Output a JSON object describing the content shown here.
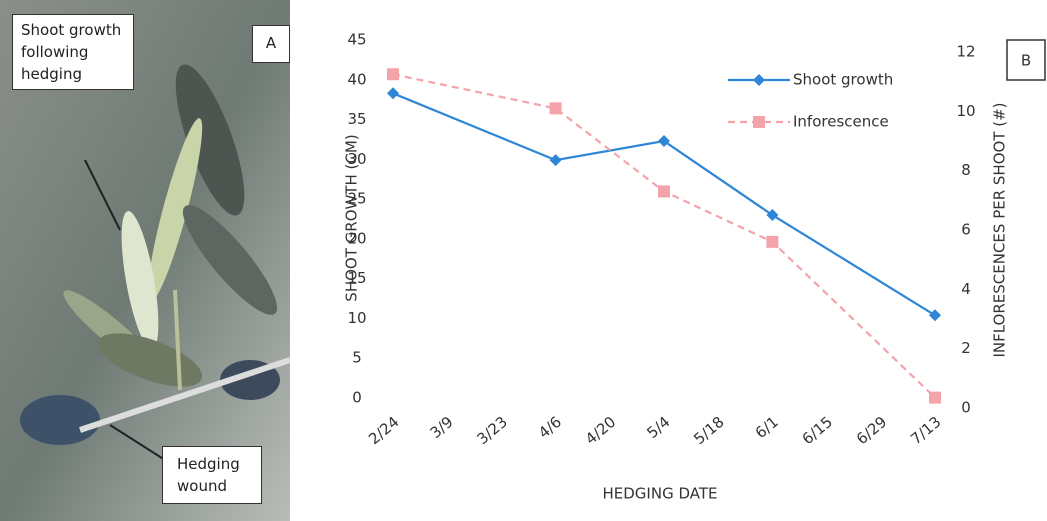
{
  "panel_a": {
    "label": "A",
    "annotations": [
      "Shoot growth following hedging",
      "Hedging wound"
    ]
  },
  "chart_data": {
    "type": "line",
    "panel_label": "B",
    "xlabel": "HEDGING DATE",
    "ylabel": "SHOOT GROWTH (CM)",
    "y2label": "INFLORESCENCES PER SHOOT (#)",
    "categories": [
      "2/24",
      "3/9",
      "3/23",
      "4/6",
      "4/20",
      "5/4",
      "5/18",
      "6/1",
      "6/15",
      "6/29",
      "7/13"
    ],
    "series": [
      {
        "name": "Shoot growth",
        "color": "#2e86d6",
        "marker": "diamond",
        "dashed": false,
        "x": [
          "2/24",
          "4/6",
          "5/4",
          "6/1",
          "7/13"
        ],
        "values": [
          38.3,
          29.9,
          32.3,
          23,
          10.4
        ]
      },
      {
        "name": "Inforescence",
        "color": "#f4a3ab",
        "marker": "square",
        "dashed": true,
        "axis": "y2",
        "x": [
          "2/24",
          "4/6",
          "5/4",
          "6/1",
          "7/13"
        ],
        "values": [
          11.25,
          10.1,
          7.3,
          5.6,
          0.35
        ]
      }
    ],
    "ylim": [
      0,
      45
    ],
    "yticks": [
      0,
      5,
      10,
      15,
      20,
      25,
      30,
      35,
      40,
      45
    ],
    "y2lim": [
      0,
      12
    ],
    "y2ticks": [
      0,
      2,
      4,
      6,
      8,
      10,
      12
    ],
    "grid": false,
    "legend": "upper right"
  }
}
